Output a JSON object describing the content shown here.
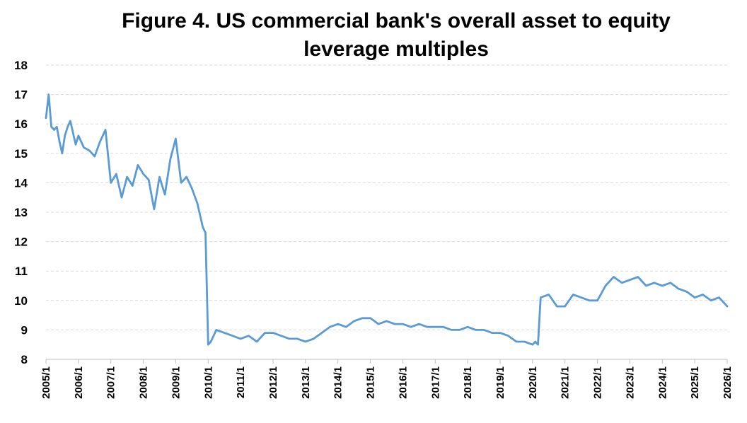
{
  "chart_data": {
    "type": "line",
    "title_line1": "Figure 4. US commercial bank's overall asset to equity",
    "title_line2": "leverage multiples",
    "xlabel": "",
    "ylabel": "",
    "ylim": [
      8,
      18
    ],
    "y_ticks": [
      "8",
      "9",
      "10",
      "11",
      "12",
      "13",
      "14",
      "15",
      "16",
      "17",
      "18"
    ],
    "x_range": [
      "2005/1",
      "2026/1"
    ],
    "x_ticks": [
      "2005/1",
      "2006/1",
      "2007/1",
      "2008/1",
      "2009/1",
      "2010/1",
      "2011/1",
      "2012/1",
      "2013/1",
      "2014/1",
      "2015/1",
      "2016/1",
      "2017/1",
      "2018/1",
      "2019/1",
      "2020/1",
      "2021/1",
      "2022/1",
      "2023/1",
      "2024/1",
      "2025/1",
      "2026/1"
    ],
    "grid": true,
    "legend": "none",
    "line_color": "#5b9bd5",
    "series": [
      {
        "x": [
          "2005/1",
          "2005/2",
          "2005/3",
          "2005/4",
          "2005/5",
          "2005/6",
          "2005/7",
          "2005/8",
          "2005/9",
          "2005/10",
          "2005/11",
          "2005/12",
          "2006/1",
          "2006/3",
          "2006/5",
          "2006/7",
          "2006/9",
          "2006/11",
          "2007/1",
          "2007/3",
          "2007/5",
          "2007/7",
          "2007/9",
          "2007/11",
          "2008/1",
          "2008/3",
          "2008/5",
          "2008/7",
          "2008/9",
          "2008/11",
          "2009/1",
          "2009/3",
          "2009/5",
          "2009/7",
          "2009/9",
          "2009/11",
          "2009/12",
          "2010/1",
          "2010/2",
          "2010/4",
          "2010/7",
          "2010/10",
          "2011/1",
          "2011/4",
          "2011/7",
          "2011/10",
          "2012/1",
          "2012/4",
          "2012/7",
          "2012/10",
          "2013/1",
          "2013/4",
          "2013/7",
          "2013/10",
          "2014/1",
          "2014/4",
          "2014/7",
          "2014/10",
          "2015/1",
          "2015/4",
          "2015/7",
          "2015/10",
          "2016/1",
          "2016/4",
          "2016/7",
          "2016/10",
          "2017/1",
          "2017/4",
          "2017/7",
          "2017/10",
          "2018/1",
          "2018/4",
          "2018/7",
          "2018/10",
          "2019/1",
          "2019/4",
          "2019/7",
          "2019/10",
          "2020/1",
          "2020/2",
          "2020/3",
          "2020/4",
          "2020/7",
          "2020/10",
          "2021/1",
          "2021/4",
          "2021/7",
          "2021/10",
          "2022/1",
          "2022/4",
          "2022/7",
          "2022/10",
          "2023/1",
          "2023/4",
          "2023/7",
          "2023/10",
          "2024/1",
          "2024/4",
          "2024/7",
          "2024/10",
          "2025/1",
          "2025/4",
          "2025/7",
          "2025/10",
          "2026/1"
        ],
        "values": [
          16.2,
          17.0,
          15.9,
          15.8,
          15.9,
          15.4,
          15.0,
          15.6,
          15.9,
          16.1,
          15.7,
          15.3,
          15.6,
          15.2,
          15.1,
          14.9,
          15.4,
          15.8,
          14.0,
          14.3,
          13.5,
          14.2,
          13.9,
          14.6,
          14.3,
          14.1,
          13.1,
          14.2,
          13.6,
          14.8,
          15.5,
          14.0,
          14.2,
          13.8,
          13.3,
          12.5,
          12.3,
          8.5,
          8.6,
          9.0,
          8.9,
          8.8,
          8.7,
          8.8,
          8.6,
          8.9,
          8.9,
          8.8,
          8.7,
          8.7,
          8.6,
          8.7,
          8.9,
          9.1,
          9.2,
          9.1,
          9.3,
          9.4,
          9.4,
          9.2,
          9.3,
          9.2,
          9.2,
          9.1,
          9.2,
          9.1,
          9.1,
          9.1,
          9.0,
          9.0,
          9.1,
          9.0,
          9.0,
          8.9,
          8.9,
          8.8,
          8.6,
          8.6,
          8.5,
          8.6,
          8.5,
          10.1,
          10.2,
          9.8,
          9.8,
          10.2,
          10.1,
          10.0,
          10.0,
          10.5,
          10.8,
          10.6,
          10.7,
          10.8,
          10.5,
          10.6,
          10.5,
          10.6,
          10.4,
          10.3,
          10.1,
          10.2,
          10.0,
          10.1,
          9.8
        ]
      }
    ]
  }
}
